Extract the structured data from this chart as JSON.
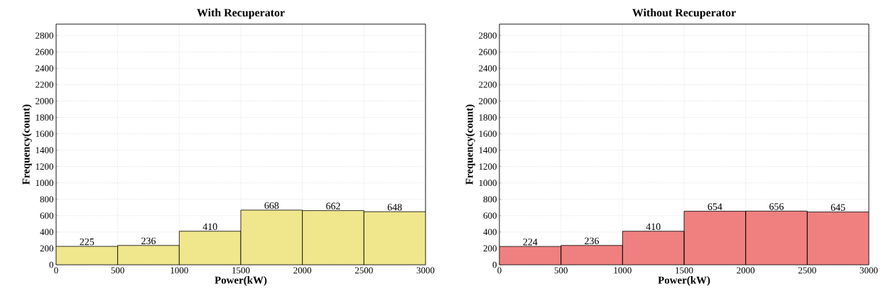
{
  "chart_data": [
    {
      "type": "histogram",
      "title": "With Recuperator",
      "xlabel": "Power(kW)",
      "ylabel": "Frequency(count)",
      "bins": [
        0,
        500,
        1000,
        1500,
        2000,
        2500,
        3000
      ],
      "values": [
        225,
        236,
        410,
        668,
        662,
        648
      ],
      "color": "#f0e68c",
      "xlim": [
        0,
        3000
      ],
      "ylim": [
        0,
        2940
      ],
      "xticks": [
        0,
        500,
        1000,
        1500,
        2000,
        2500,
        3000
      ],
      "yticks": [
        0,
        200,
        400,
        600,
        800,
        1000,
        1200,
        1400,
        1600,
        1800,
        2000,
        2200,
        2400,
        2600,
        2800
      ],
      "grid": true,
      "data_labels": true
    },
    {
      "type": "histogram",
      "title": "Without Recuperator",
      "xlabel": "Power(kW)",
      "ylabel": "Frequency(count)",
      "bins": [
        0,
        500,
        1000,
        1500,
        2000,
        2500,
        3000
      ],
      "values": [
        224,
        236,
        410,
        654,
        656,
        645
      ],
      "color": "#f08080",
      "xlim": [
        0,
        3000
      ],
      "ylim": [
        0,
        2940
      ],
      "xticks": [
        0,
        500,
        1000,
        1500,
        2000,
        2500,
        3000
      ],
      "yticks": [
        0,
        200,
        400,
        600,
        800,
        1000,
        1200,
        1400,
        1600,
        1800,
        2000,
        2200,
        2400,
        2600,
        2800
      ],
      "grid": true,
      "data_labels": true
    }
  ]
}
